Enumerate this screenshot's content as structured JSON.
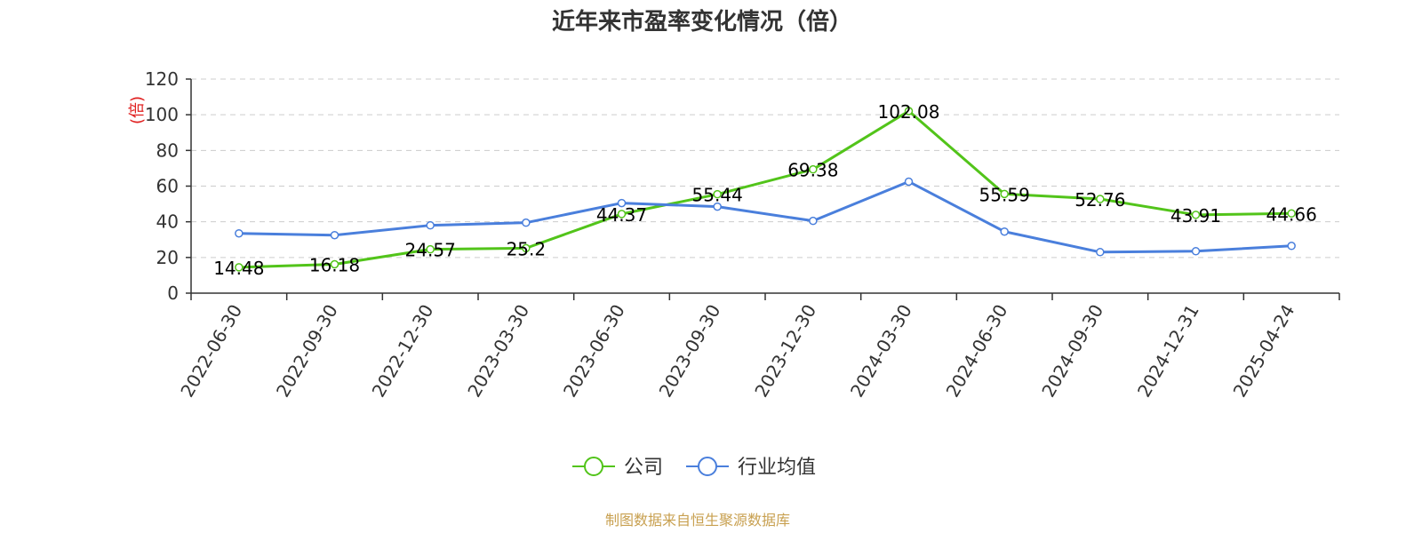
{
  "chart_data": {
    "type": "line",
    "title": "近年来市盈率变化情况（倍）",
    "ylabel": "(倍)",
    "xlabel": "",
    "ylim": [
      0,
      120
    ],
    "yticks": [
      0,
      20,
      40,
      60,
      80,
      100,
      120
    ],
    "grid": true,
    "legend_position": "bottom",
    "categories": [
      "2022-06-30",
      "2022-09-30",
      "2022-12-30",
      "2023-03-30",
      "2023-06-30",
      "2023-09-30",
      "2023-12-30",
      "2024-03-30",
      "2024-06-30",
      "2024-09-30",
      "2024-12-31",
      "2025-04-24"
    ],
    "series": [
      {
        "name": "公司",
        "color": "#52c41a",
        "values": [
          14.48,
          16.18,
          24.57,
          25.2,
          44.37,
          55.44,
          69.38,
          102.08,
          55.59,
          52.76,
          43.91,
          44.66
        ],
        "labels": [
          "14.48",
          "16.18",
          "24.57",
          "25.2",
          "44.37",
          "55.44",
          "69.38",
          "102.08",
          "55.59",
          "52.76",
          "43.91",
          "44.66"
        ]
      },
      {
        "name": "行业均值",
        "color": "#4a7fdc",
        "values": [
          33.5,
          32.5,
          38.0,
          39.5,
          50.5,
          48.5,
          40.5,
          62.5,
          34.5,
          23.0,
          23.5,
          26.5
        ]
      }
    ],
    "source": "制图数据来自恒生聚源数据库"
  }
}
